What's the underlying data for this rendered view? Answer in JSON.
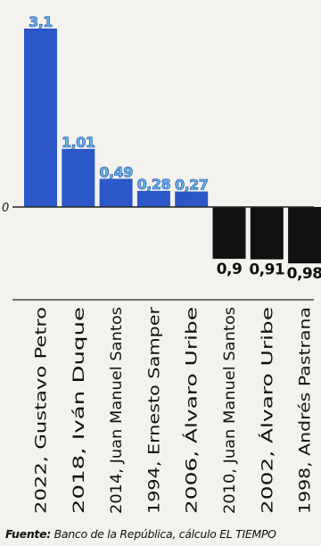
{
  "chart_data": {
    "type": "bar",
    "title": "",
    "xlabel": "",
    "ylabel": "",
    "zero_label": "0",
    "categories": [
      "2022, Gustavo Petro",
      "2018, Iván Duque",
      "2014, Juan Manuel Santos",
      "1994, Ernesto Samper",
      "2006, Álvaro Uribe",
      "2010, Juan Manuel Santos",
      "2002, Álvaro Uribe",
      "1998, Andrés Pastrana"
    ],
    "values": [
      3.1,
      1.01,
      0.49,
      0.28,
      0.27,
      -0.9,
      -0.91,
      -0.98
    ],
    "value_labels": [
      "3,1",
      "1,01",
      "0,49",
      "0,28",
      "0,27",
      "0,9",
      "0,91",
      "0,98"
    ],
    "ylim": [
      -1.1,
      3.3
    ],
    "colors": {
      "positive": "#2b57c9",
      "negative": "#111111",
      "positive_label": "#5fb8f0",
      "negative_label": "#111111"
    },
    "grid": false
  },
  "source": {
    "label": "Fuente:",
    "text": " Banco de la República, cálculo EL TIEMPO"
  }
}
